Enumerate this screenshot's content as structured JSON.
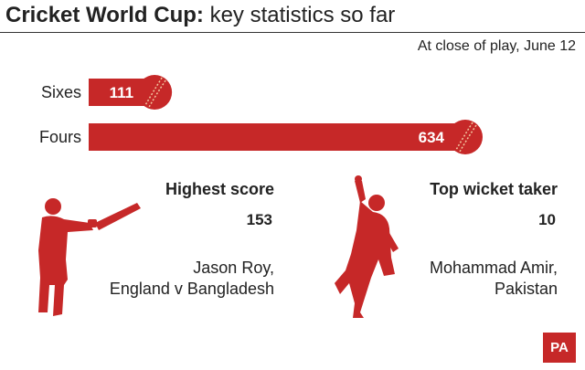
{
  "header": {
    "title_bold": "Cricket World Cup:",
    "title_rest": " key statistics so far",
    "subtitle": "At close of play, June 12"
  },
  "chart_data": {
    "type": "bar",
    "orientation": "horizontal",
    "categories": [
      "Sixes",
      "Fours"
    ],
    "values": [
      111,
      634
    ],
    "value_labels": [
      "111",
      "634"
    ],
    "colors": {
      "bar": "#c62828",
      "ball": "#c62828",
      "seam": "#f3c7a0"
    }
  },
  "stats": {
    "highest_score": {
      "heading": "Highest score",
      "value": "153",
      "detail_line1": "Jason Roy,",
      "detail_line2": "England v Bangladesh"
    },
    "top_wicket_taker": {
      "heading": "Top wicket taker",
      "value": "10",
      "detail_line1": "Mohammad Amir,",
      "detail_line2": "Pakistan"
    }
  },
  "icons": {
    "batsman": "batsman-silhouette-icon",
    "bowler": "bowler-silhouette-icon",
    "ball": "cricket-ball-icon"
  },
  "logo": {
    "text": "PA",
    "color": "#c62828"
  }
}
